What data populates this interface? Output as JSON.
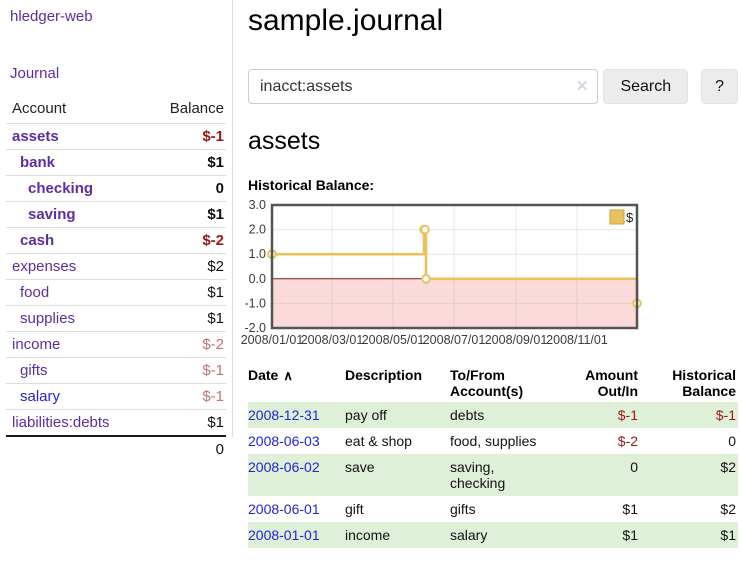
{
  "brand": "hledger-web",
  "nav": {
    "journal": "Journal"
  },
  "sidebar": {
    "headers": {
      "account": "Account",
      "balance": "Balance"
    },
    "rows": [
      {
        "account": "assets",
        "balance": "$-1",
        "depth": 0,
        "bold": true,
        "name_color": "purple",
        "amount_style": "neg-strong"
      },
      {
        "account": "bank",
        "balance": "$1",
        "depth": 1,
        "bold": true,
        "name_color": "purple",
        "amount_style": "bold"
      },
      {
        "account": "checking",
        "balance": "0",
        "depth": 2,
        "bold": true,
        "name_color": "purple",
        "amount_style": "bold"
      },
      {
        "account": "saving",
        "balance": "$1",
        "depth": 2,
        "bold": true,
        "name_color": "purple",
        "amount_style": "bold"
      },
      {
        "account": "cash",
        "balance": "$-2",
        "depth": 1,
        "bold": true,
        "name_color": "purple",
        "amount_style": "neg-strong"
      },
      {
        "account": "expenses",
        "balance": "$2",
        "depth": 0,
        "bold": false,
        "name_color": "purple",
        "amount_style": "plain"
      },
      {
        "account": "food",
        "balance": "$1",
        "depth": 1,
        "bold": false,
        "name_color": "purple",
        "amount_style": "plain"
      },
      {
        "account": "supplies",
        "balance": "$1",
        "depth": 1,
        "bold": false,
        "name_color": "purple",
        "amount_style": "plain"
      },
      {
        "account": "income",
        "balance": "$-2",
        "depth": 0,
        "bold": false,
        "name_color": "purple",
        "amount_style": "neg-soft"
      },
      {
        "account": "gifts",
        "balance": "$-1",
        "depth": 1,
        "bold": false,
        "name_color": "purple",
        "amount_style": "neg-soft"
      },
      {
        "account": "salary",
        "balance": "$-1",
        "depth": 1,
        "bold": false,
        "name_color": "blue",
        "amount_style": "neg-soft"
      },
      {
        "account": "liabilities:debts",
        "balance": "$1",
        "depth": 0,
        "bold": false,
        "name_color": "purple",
        "amount_style": "plain"
      }
    ],
    "total": "0"
  },
  "main": {
    "title": "sample.journal",
    "search": {
      "value": "inacct:assets",
      "clear_icon": "✕",
      "search_button": "Search",
      "help_button": "?"
    },
    "account_heading": "assets",
    "section_label": "Historical Balance:"
  },
  "chart_data": {
    "type": "line",
    "step": true,
    "title": "Historical Balance:",
    "series": [
      {
        "name": "$",
        "points": [
          [
            "2008-01-01",
            1
          ],
          [
            "2008-06-01",
            2
          ],
          [
            "2008-06-02",
            2
          ],
          [
            "2008-06-03",
            0
          ],
          [
            "2008-12-31",
            -1
          ]
        ]
      }
    ],
    "x_range": [
      "2008-01-01",
      "2008-12-31"
    ],
    "x_ticks": [
      {
        "date": "2008-01-01",
        "label": "2008/01/01"
      },
      {
        "date": "2008-03-01",
        "label": "2008/03/01"
      },
      {
        "date": "2008-05-01",
        "label": "2008/05/01"
      },
      {
        "date": "2008-07-01",
        "label": "2008/07/01"
      },
      {
        "date": "2008-09-01",
        "label": "2008/09/01"
      },
      {
        "date": "2008-11-01",
        "label": "2008/11/01"
      }
    ],
    "y_ticks": [
      3,
      2,
      1,
      0,
      -1,
      -2
    ],
    "y_tick_labels": [
      "3.0",
      "2.0",
      "1.0",
      "0.0",
      "-1.0",
      "-2.0"
    ],
    "ylim": [
      -2,
      3
    ],
    "grid": true,
    "legend": {
      "label": "$",
      "swatch_color": "#e9c25c",
      "position": "top-right"
    },
    "colors": {
      "line": "#e9c25c",
      "marker_fill": "#ffffff",
      "negative_fill": "#fbdada",
      "zero_line": "#8b1a1a",
      "grid": "#bbbbbb",
      "border": "#545454"
    }
  },
  "register": {
    "headers": {
      "date": "Date",
      "sort_icon": "∧",
      "description": "Description",
      "tofrom": "To/From Account(s)",
      "amount": "Amount Out/In",
      "balance": "Historical Balance"
    },
    "rows": [
      {
        "date": "2008-12-31",
        "description": "pay off",
        "tofrom": "debts",
        "amount": "$-1",
        "balance": "$-1",
        "shaded": true
      },
      {
        "date": "2008-06-03",
        "description": "eat & shop",
        "tofrom": "food, supplies",
        "amount": "$-2",
        "balance": "0",
        "shaded": false
      },
      {
        "date": "2008-06-02",
        "description": "save",
        "tofrom": "saving, checking",
        "amount": "0",
        "balance": "$2",
        "shaded": true
      },
      {
        "date": "2008-06-01",
        "description": "gift",
        "tofrom": "gifts",
        "amount": "$1",
        "balance": "$2",
        "shaded": false
      },
      {
        "date": "2008-01-01",
        "description": "income",
        "tofrom": "salary",
        "amount": "$1",
        "balance": "$1",
        "shaded": true
      }
    ]
  }
}
